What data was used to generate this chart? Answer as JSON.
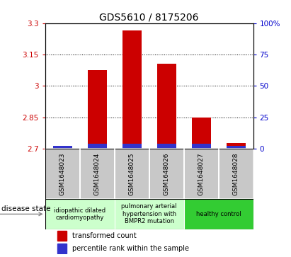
{
  "title": "GDS5610 / 8175206",
  "samples": [
    "GSM1648023",
    "GSM1648024",
    "GSM1648025",
    "GSM1648026",
    "GSM1648027",
    "GSM1648028"
  ],
  "transformed_count": [
    2.715,
    3.075,
    3.265,
    3.105,
    2.848,
    2.728
  ],
  "percentile_rank_pct": [
    2.5,
    4.0,
    4.0,
    4.0,
    4.0,
    2.5
  ],
  "ylim_left": [
    2.7,
    3.3
  ],
  "ylim_right": [
    0,
    100
  ],
  "yticks_left": [
    2.7,
    2.85,
    3.0,
    3.15,
    3.3
  ],
  "yticks_left_labels": [
    "2.7",
    "2.85",
    "3",
    "3.15",
    "3.3"
  ],
  "yticks_right": [
    0,
    25,
    50,
    75,
    100
  ],
  "yticks_right_labels": [
    "0",
    "25",
    "50",
    "75",
    "100%"
  ],
  "hgrid_values": [
    2.85,
    3.0,
    3.15
  ],
  "bar_color_red": "#cc0000",
  "bar_color_blue": "#3333cc",
  "sample_bg_color": "#c8c8c8",
  "legend_red_label": "transformed count",
  "legend_blue_label": "percentile rank within the sample",
  "disease_state_label": "disease state",
  "title_fontsize": 10,
  "axis_label_color_left": "#cc0000",
  "axis_label_color_right": "#0000cc",
  "group1_color": "#ccffcc",
  "group2_color": "#ccffcc",
  "group3_color": "#33cc33"
}
